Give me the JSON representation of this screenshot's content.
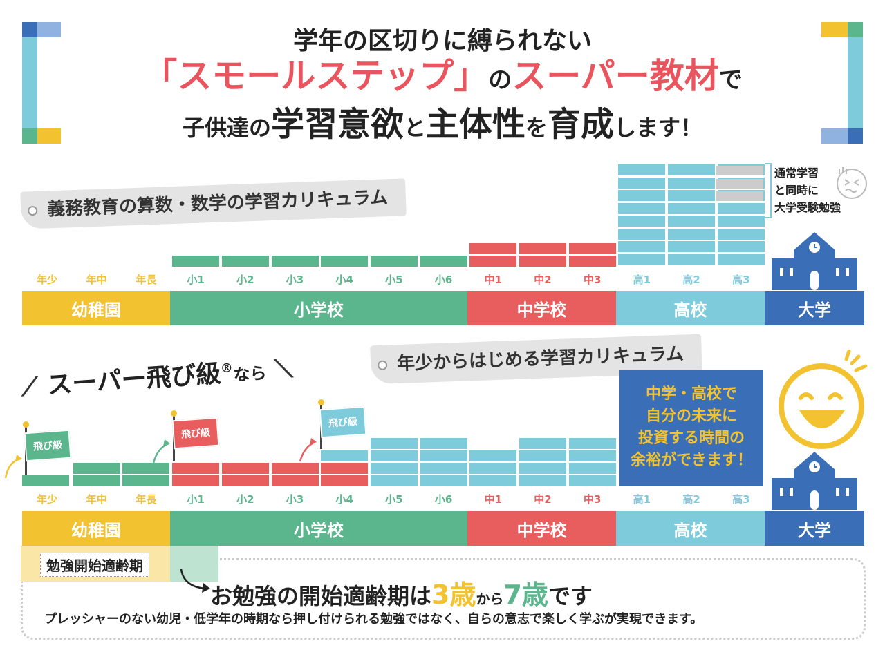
{
  "headline": {
    "line1": "学年の区切りに縛られない",
    "line2_a": "「スモールステップ」",
    "line2_b": "の",
    "line2_c": "スーパー教材",
    "line2_d": "で",
    "line3_a": "子供達の",
    "line3_b": "学習意欲",
    "line3_c": "と",
    "line3_d": "主体性",
    "line3_e": "を",
    "line3_f": "育成",
    "line3_g": "します！"
  },
  "top_section": {
    "label": "義務教育の算数・数学の学習カリキュラム",
    "side_note": [
      "通常学習",
      "と同時に",
      "大学受験勉強"
    ],
    "grades": [
      "年少",
      "年中",
      "年長",
      "小1",
      "小2",
      "小3",
      "小4",
      "小5",
      "小6",
      "中1",
      "中2",
      "中3",
      "高1",
      "高2",
      "高3"
    ],
    "schools": [
      "幼稚園",
      "小学校",
      "中学校",
      "高校",
      "大学"
    ]
  },
  "bottom_section": {
    "title": "スーパー飛び級",
    "registered": "®",
    "title_suffix": "なら",
    "label": "年少からはじめる学習カリキュラム",
    "flag_text": "飛び級",
    "blue_box": [
      "中学・高校で",
      "自分の未来に",
      "投資する時間の",
      "余裕ができます！"
    ],
    "grades": [
      "年少",
      "年中",
      "年長",
      "小1",
      "小2",
      "小3",
      "小4",
      "小5",
      "小6",
      "中1",
      "中2",
      "中3",
      "高1",
      "高2",
      "高3"
    ],
    "schools": [
      "幼稚園",
      "小学校",
      "中学校",
      "高校",
      "大学"
    ]
  },
  "age_section": {
    "tag": "勉強開始適齢期",
    "main_a": "お勉強の開始適齢期は",
    "age1": "3歳",
    "main_b": "から",
    "age2": "7歳",
    "main_c": "です",
    "sub": "プレッシャーのない幼児・低学年の時期なら押し付けられる勉強ではなく、自らの意志で楽しく学ぶが実現できます。"
  },
  "colors": {
    "yellow": "#f2c230",
    "green": "#5bb68d",
    "red": "#e85d5d",
    "lightblue": "#7ecbdc",
    "blue": "#3a6fb8",
    "pink_text": "#e8555f"
  }
}
